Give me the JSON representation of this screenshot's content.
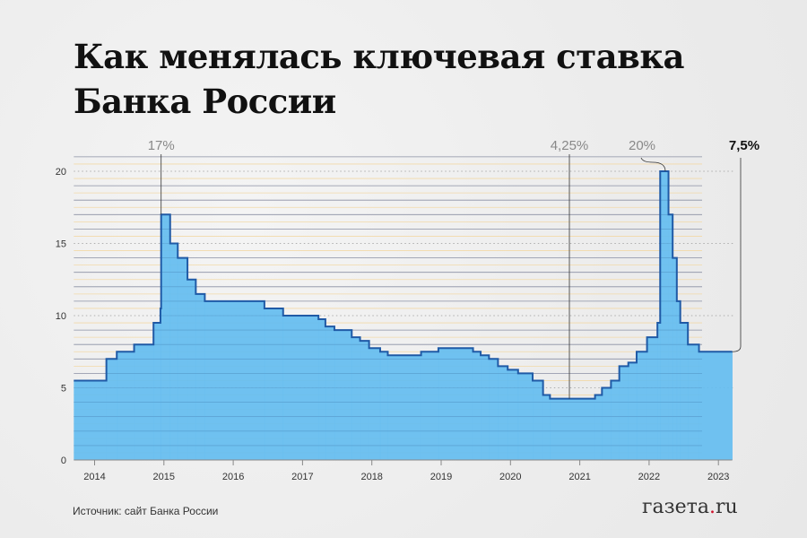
{
  "title_line1": "Как менялась ключевая ставка",
  "title_line2": "Банка России",
  "source": "Источник: сайт Банка России",
  "logo": {
    "text": "газета",
    "dot": ".",
    "suffix": "ru"
  },
  "colors": {
    "fill": "#64bdf0",
    "line": "#1f5aa6",
    "grid": "#8a8fa3",
    "grid_minor": "#f2d9a8",
    "logo_dot": "#d0112b"
  },
  "chart_data": {
    "type": "area",
    "step": true,
    "xlabel": "",
    "ylabel": "",
    "xlim": [
      2013.7,
      2023.2
    ],
    "ylim": [
      0,
      21
    ],
    "x_ticks": [
      "2014",
      "2015",
      "2016",
      "2017",
      "2018",
      "2019",
      "2020",
      "2021",
      "2022",
      "2023"
    ],
    "y_ticks": [
      "0",
      "5",
      "10",
      "15",
      "20"
    ],
    "grid": true,
    "x": [
      2013.7,
      2014.17,
      2014.32,
      2014.57,
      2014.85,
      2014.95,
      2014.96,
      2015.09,
      2015.2,
      2015.34,
      2015.46,
      2015.59,
      2016.45,
      2016.72,
      2017.23,
      2017.33,
      2017.46,
      2017.71,
      2017.83,
      2017.96,
      2018.12,
      2018.23,
      2018.71,
      2018.96,
      2019.46,
      2019.57,
      2019.69,
      2019.82,
      2019.96,
      2020.11,
      2020.32,
      2020.47,
      2020.57,
      2021.22,
      2021.32,
      2021.45,
      2021.57,
      2021.7,
      2021.82,
      2021.97,
      2022.12,
      2022.16,
      2022.28,
      2022.34,
      2022.4,
      2022.45,
      2022.56,
      2022.72
    ],
    "values": [
      5.5,
      7,
      7.5,
      8,
      9.5,
      10.5,
      17,
      15,
      14,
      12.5,
      11.5,
      11,
      10.5,
      10,
      9.75,
      9.25,
      9,
      8.5,
      8.25,
      7.75,
      7.5,
      7.25,
      7.5,
      7.75,
      7.5,
      7.25,
      7,
      6.5,
      6.25,
      6,
      5.5,
      4.5,
      4.25,
      4.5,
      5,
      5.5,
      6.5,
      6.75,
      7.5,
      8.5,
      9.5,
      20,
      17,
      14,
      11,
      9.5,
      8,
      7.5
    ],
    "x_end": 2023.2,
    "annotations": [
      {
        "label": "17%",
        "x": 2014.96,
        "y": 17
      },
      {
        "label": "4,25%",
        "x": 2020.85,
        "y": 4.25
      },
      {
        "label": "20%",
        "x": 2022.2,
        "y": 20
      },
      {
        "label": "7,5%",
        "x": 2023.2,
        "y": 7.5,
        "bold": true
      }
    ]
  }
}
